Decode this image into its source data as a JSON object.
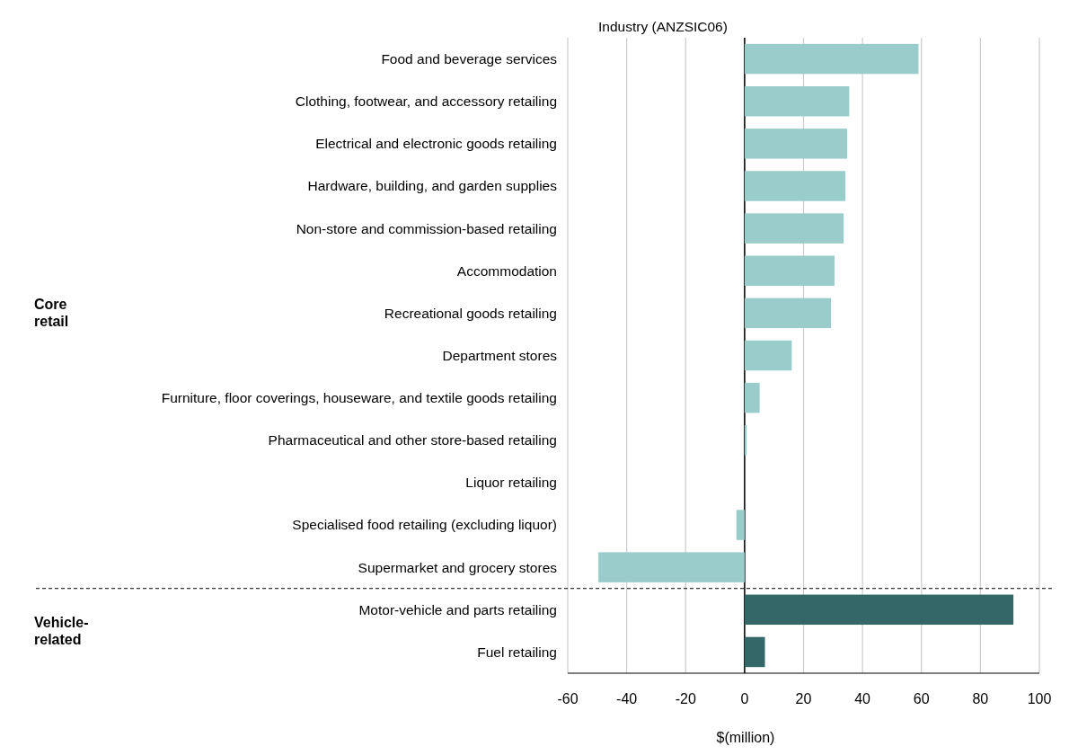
{
  "chart_data": {
    "type": "bar",
    "orientation": "horizontal",
    "ylabel": "Industry (ANZSIC06)",
    "xlabel": "$(million)",
    "categories": [
      "Food and beverage services",
      "Clothing, footwear, and accessory retailing",
      "Electrical and electronic goods retailing",
      "Hardware, building, and garden supplies",
      "Non-store and commission-based retailing",
      "Accommodation",
      "Recreational goods retailing",
      "Department stores",
      "Furniture, floor coverings, houseware, and textile goods retailing",
      "Pharmaceutical and other store-based retailing",
      "Liquor retailing",
      "Specialised food retailing (excluding liquor)",
      "Supermarket and grocery stores",
      "Motor-vehicle and parts retailing",
      "Fuel retailing"
    ],
    "values": [
      59,
      35.5,
      34.8,
      34.2,
      33.6,
      30.5,
      29.3,
      16,
      5.1,
      0.7,
      0,
      -2.8,
      -49.6,
      91.2,
      6.9
    ],
    "colors": [
      "#9bcccc",
      "#9bcccc",
      "#9bcccc",
      "#9bcccc",
      "#9bcccc",
      "#9bcccc",
      "#9bcccc",
      "#9bcccc",
      "#9bcccc",
      "#9bcccc",
      "#9bcccc",
      "#9bcccc",
      "#9bcccc",
      "#346868",
      "#346868"
    ],
    "xlim": [
      -60,
      100
    ],
    "xticks": [
      -60,
      -40,
      -20,
      0,
      20,
      40,
      60,
      80,
      100
    ],
    "grid": "x",
    "annotations": [
      "Core retail",
      "Vehicle-related"
    ]
  }
}
